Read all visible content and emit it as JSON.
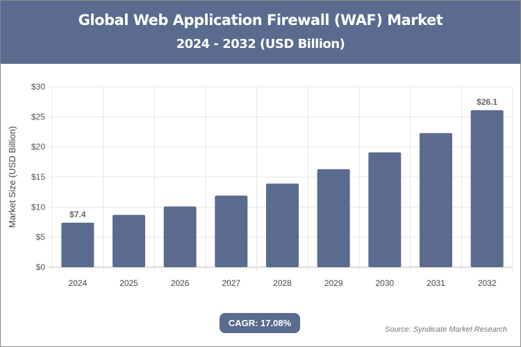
{
  "header": {
    "title": "Global Web Application Firewall (WAF) Market",
    "subtitle": "2024 - 2032 (USD Billion)"
  },
  "chart_data": {
    "type": "bar",
    "title": "Global Web Application Firewall (WAF) Market",
    "subtitle": "2024 - 2032 (USD Billion)",
    "categories": [
      "2024",
      "2025",
      "2026",
      "2027",
      "2028",
      "2029",
      "2030",
      "2031",
      "2032"
    ],
    "values": [
      7.4,
      8.7,
      10.1,
      11.9,
      13.9,
      16.3,
      19.1,
      22.3,
      26.1
    ],
    "data_labels": {
      "0": "$7.4",
      "8": "$26.1"
    },
    "xlabel": "",
    "ylabel": "Market Size (USD Billion)",
    "ylim": [
      0,
      30
    ],
    "yticks": [
      "$0",
      "$5",
      "$10",
      "$15",
      "$20",
      "$25",
      "$30"
    ],
    "grid": true,
    "bar_color": "#5b6b8f"
  },
  "footer": {
    "cagr": "CAGR: 17.08%",
    "source": "Source: Syndicate Market Research"
  }
}
